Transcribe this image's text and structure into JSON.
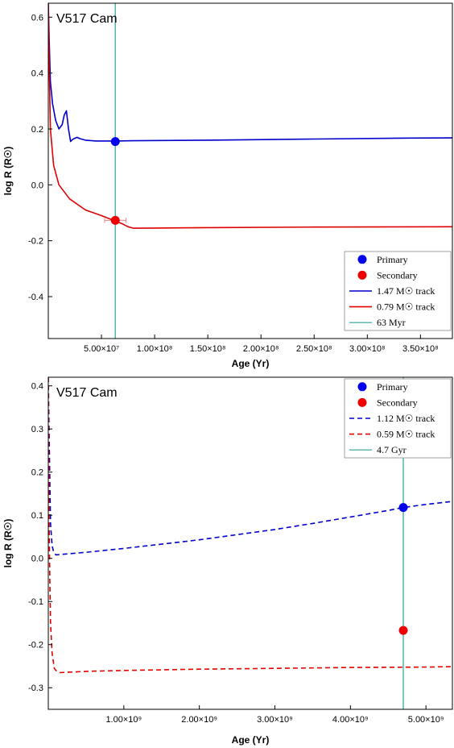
{
  "chart_data": [
    {
      "type": "line",
      "title": "V517 Cam",
      "xlabel": "Age (Yr)",
      "ylabel": "log R (R☉)",
      "xlim": [
        0,
        380000000
      ],
      "ylim": [
        -0.55,
        0.65
      ],
      "x_ticks": [
        {
          "value": 50000000,
          "label": "5.00×10⁷"
        },
        {
          "value": 100000000,
          "label": "1.00×10⁸"
        },
        {
          "value": 150000000,
          "label": "1.50×10⁸"
        },
        {
          "value": 200000000,
          "label": "2.00×10⁸"
        },
        {
          "value": 250000000,
          "label": "2.50×10⁸"
        },
        {
          "value": 300000000,
          "label": "3.00×10⁸"
        },
        {
          "value": 350000000,
          "label": "3.50×10⁸"
        }
      ],
      "y_ticks": [
        {
          "value": -0.4,
          "label": "-0.4"
        },
        {
          "value": -0.2,
          "label": "-0.2"
        },
        {
          "value": 0.0,
          "label": "0.0"
        },
        {
          "value": 0.2,
          "label": "0.2"
        },
        {
          "value": 0.4,
          "label": "0.4"
        },
        {
          "value": 0.6,
          "label": "0.6"
        }
      ],
      "series": [
        {
          "name": "1.47 M☉ track",
          "color": "#0000cc",
          "dash": "solid",
          "x": [
            0,
            1000000,
            2000000,
            4000000,
            7000000,
            10000000,
            13000000,
            15000000,
            17000000,
            19000000,
            21000000,
            22000000,
            24000000,
            27000000,
            30000000,
            35000000,
            45000000,
            63000000,
            80000000,
            150000000,
            250000000,
            330000000,
            380000000
          ],
          "y": [
            0.65,
            0.5,
            0.37,
            0.29,
            0.23,
            0.2,
            0.215,
            0.25,
            0.265,
            0.2,
            0.155,
            0.16,
            0.165,
            0.17,
            0.165,
            0.16,
            0.157,
            0.157,
            0.158,
            0.16,
            0.164,
            0.167,
            0.168
          ]
        },
        {
          "name": "0.79 M☉ track",
          "color": "#e00000",
          "dash": "solid",
          "x": [
            0,
            1000000,
            2000000,
            5000000,
            10000000,
            20000000,
            35000000,
            50000000,
            60000000,
            70000000,
            75000000,
            80000000,
            90000000,
            150000000,
            250000000,
            380000000
          ],
          "y": [
            0.65,
            0.4,
            0.2,
            0.07,
            0.0,
            -0.05,
            -0.09,
            -0.11,
            -0.125,
            -0.14,
            -0.15,
            -0.155,
            -0.155,
            -0.153,
            -0.151,
            -0.15
          ]
        },
        {
          "name": "63 Myr",
          "color": "#2aa198",
          "dash": "solid",
          "kind": "vline",
          "x": [
            63000000,
            63000000
          ],
          "y": [
            -0.55,
            0.65
          ]
        }
      ],
      "points": [
        {
          "name": "Primary",
          "color": "#0000ee",
          "x": 63000000,
          "y": 0.155
        },
        {
          "name": "Secondary",
          "color": "#ee0000",
          "x": 63000000,
          "y": -0.127,
          "xerr": 10000000
        }
      ],
      "legend": "bottom-right",
      "grid": false
    },
    {
      "type": "line",
      "title": "V517 Cam",
      "xlabel": "Age (Yr)",
      "ylabel": "log R (R☉)",
      "xlim": [
        0,
        5350000000
      ],
      "ylim": [
        -0.35,
        0.42
      ],
      "x_ticks": [
        {
          "value": 1000000000,
          "label": "1.00×10⁹"
        },
        {
          "value": 2000000000,
          "label": "2.00×10⁹"
        },
        {
          "value": 3000000000,
          "label": "3.00×10⁹"
        },
        {
          "value": 4000000000,
          "label": "4.00×10⁹"
        },
        {
          "value": 5000000000,
          "label": "5.00×10⁹"
        }
      ],
      "y_ticks": [
        {
          "value": -0.3,
          "label": "-0.3"
        },
        {
          "value": -0.2,
          "label": "-0.2"
        },
        {
          "value": -0.1,
          "label": "-0.1"
        },
        {
          "value": 0.0,
          "label": "0.0"
        },
        {
          "value": 0.1,
          "label": "0.1"
        },
        {
          "value": 0.2,
          "label": "0.2"
        },
        {
          "value": 0.3,
          "label": "0.3"
        },
        {
          "value": 0.4,
          "label": "0.4"
        }
      ],
      "series": [
        {
          "name": "1.12 M☉ track",
          "color": "#0000cc",
          "dash": "dashed",
          "x": [
            0,
            10000000,
            20000000,
            30000000,
            50000000,
            70000000,
            100000000,
            500000000,
            1000000000,
            1500000000,
            2000000000,
            2500000000,
            3000000000,
            3500000000,
            4000000000,
            4500000000,
            4700000000,
            5000000000,
            5350000000
          ],
          "y": [
            0.42,
            0.3,
            0.18,
            0.08,
            0.03,
            0.015,
            0.008,
            0.014,
            0.023,
            0.033,
            0.043,
            0.055,
            0.067,
            0.081,
            0.096,
            0.111,
            0.118,
            0.125,
            0.132
          ]
        },
        {
          "name": "0.59 M☉ track",
          "color": "#e00000",
          "dash": "dashed",
          "x": [
            0,
            10000000,
            20000000,
            30000000,
            50000000,
            80000000,
            100000000,
            150000000,
            500000000,
            1000000000,
            2000000000,
            3000000000,
            4000000000,
            5000000000,
            5350000000
          ],
          "y": [
            0.42,
            0.1,
            -0.05,
            -0.15,
            -0.22,
            -0.255,
            -0.26,
            -0.265,
            -0.262,
            -0.26,
            -0.257,
            -0.255,
            -0.253,
            -0.252,
            -0.251
          ]
        },
        {
          "name": "4.7 Gyr",
          "color": "#2aa198",
          "dash": "solid",
          "kind": "vline",
          "x": [
            4700000000,
            4700000000
          ],
          "y": [
            -0.35,
            0.42
          ]
        }
      ],
      "points": [
        {
          "name": "Primary",
          "color": "#0000ee",
          "x": 4700000000,
          "y": 0.118
        },
        {
          "name": "Secondary",
          "color": "#ee0000",
          "x": 4700000000,
          "y": -0.167
        }
      ],
      "legend": "top-right",
      "grid": false
    }
  ]
}
